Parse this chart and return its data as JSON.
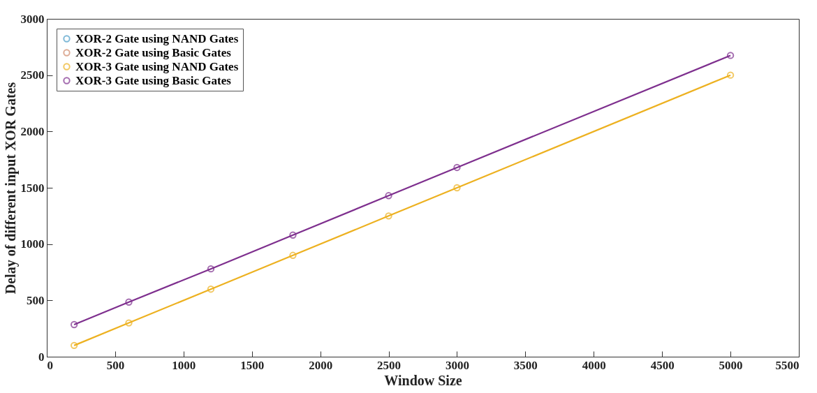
{
  "chart_data": {
    "type": "line",
    "xlabel": "Window Size",
    "ylabel": "Delay of different input XOR Gates",
    "x": [
      200,
      600,
      1200,
      1800,
      2500,
      3000,
      5000
    ],
    "series": [
      {
        "name": "XOR-2 Gate using NAND Gates",
        "color": "#4a9cc7",
        "values": [
          null,
          null,
          null,
          null,
          null,
          null,
          null
        ]
      },
      {
        "name": "XOR-2 Gate using Basic Gates",
        "color": "#d08a6a",
        "values": [
          null,
          null,
          null,
          null,
          null,
          null,
          null
        ]
      },
      {
        "name": "XOR-3 Gate using NAND Gates",
        "color": "#edb120",
        "values": [
          100,
          300,
          600,
          900,
          1250,
          1500,
          2500
        ]
      },
      {
        "name": "XOR-3 Gate using Basic Gates",
        "color": "#7e2f8e",
        "values": [
          285,
          485,
          780,
          1080,
          1430,
          1680,
          2675
        ]
      }
    ],
    "xlim": [
      0,
      5500
    ],
    "xticks": [
      0,
      500,
      1000,
      1500,
      2000,
      2500,
      3000,
      3500,
      4000,
      4500,
      5000,
      5500
    ],
    "ylim": [
      0,
      3000
    ],
    "yticks": [
      0,
      500,
      1000,
      1500,
      2000,
      2500,
      3000
    ],
    "grid": false,
    "legend": "top left",
    "marker": "circle",
    "line_style": "solid"
  }
}
